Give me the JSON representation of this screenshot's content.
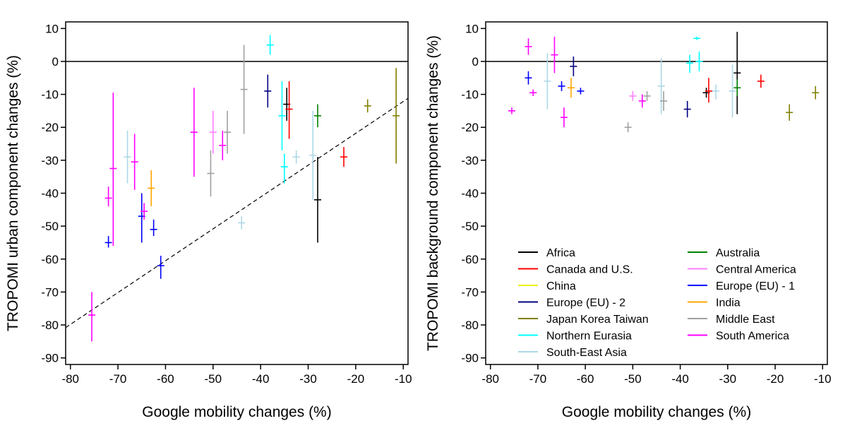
{
  "colors": {
    "Africa": "#000000",
    "Canada and U.S.": "#ff0000",
    "China": "#f0f000",
    "Europe (EU) - 2": "#000080",
    "Japan Korea Taiwan": "#808000",
    "Northern Eurasia": "#00ffff",
    "South-East Asia": "#add8e6",
    "Australia": "#008000",
    "Central America": "#ff80ff",
    "Europe (EU) - 1": "#0000ff",
    "India": "#ffa500",
    "Middle East": "#a0a0a0",
    "South America": "#ff00ff"
  },
  "chart_data": [
    {
      "type": "scatter",
      "title": "",
      "xlabel": "Google mobility changes (%)",
      "ylabel": "TROPOMI urban component changes (%)",
      "xlim": [
        -81,
        -9
      ],
      "ylim": [
        -92,
        12
      ],
      "xticks": [
        "-80",
        "-70",
        "-60",
        "-50",
        "-40",
        "-30",
        "-20",
        "-10"
      ],
      "yticks": [
        "10",
        "0",
        "-10",
        "-20",
        "-30",
        "-40",
        "-50",
        "-60",
        "-70",
        "-80",
        "-90"
      ],
      "error_bars": "vertical",
      "zero_line": true,
      "fit_line": {
        "style": "dashed",
        "x": [
          -81,
          -9
        ],
        "y": [
          -80.8,
          -11.2
        ]
      },
      "points": [
        {
          "series": "South America",
          "x": -75.5,
          "y": -77,
          "ylo": -85,
          "yhi": -70
        },
        {
          "series": "Europe (EU) - 1",
          "x": -72,
          "y": -55,
          "ylo": -56.5,
          "yhi": -53
        },
        {
          "series": "South America",
          "x": -72,
          "y": -41.5,
          "ylo": -44,
          "yhi": -38
        },
        {
          "series": "South America",
          "x": -71,
          "y": -32.5,
          "ylo": -56,
          "yhi": -9.5
        },
        {
          "series": "South-East Asia",
          "x": -68,
          "y": -29,
          "ylo": -37,
          "yhi": -21
        },
        {
          "series": "South America",
          "x": -66.5,
          "y": -30.5,
          "ylo": -39,
          "yhi": -22
        },
        {
          "series": "Europe (EU) - 1",
          "x": -65,
          "y": -47,
          "ylo": -55,
          "yhi": -40
        },
        {
          "series": "South America",
          "x": -64.5,
          "y": -45.5,
          "ylo": -48,
          "yhi": -43
        },
        {
          "series": "India",
          "x": -63,
          "y": -38.5,
          "ylo": -44,
          "yhi": -33
        },
        {
          "series": "Europe (EU) - 1",
          "x": -62.5,
          "y": -51,
          "ylo": -53,
          "yhi": -48
        },
        {
          "series": "Europe (EU) - 1",
          "x": -61,
          "y": -62,
          "ylo": -66,
          "yhi": -59
        },
        {
          "series": "South America",
          "x": -54,
          "y": -21.5,
          "ylo": -35,
          "yhi": -8
        },
        {
          "series": "Middle East",
          "x": -50.5,
          "y": -34,
          "ylo": -41,
          "yhi": -27
        },
        {
          "series": "Central America",
          "x": -50,
          "y": -21.5,
          "ylo": -28,
          "yhi": -15
        },
        {
          "series": "South America",
          "x": -48,
          "y": -25.5,
          "ylo": -30,
          "yhi": -21
        },
        {
          "series": "Middle East",
          "x": -47,
          "y": -21.5,
          "ylo": -28,
          "yhi": -15
        },
        {
          "series": "South-East Asia",
          "x": -44,
          "y": -49,
          "ylo": -51,
          "yhi": -47
        },
        {
          "series": "Middle East",
          "x": -43.5,
          "y": -8.5,
          "ylo": -22,
          "yhi": 5
        },
        {
          "series": "Europe (EU) - 2",
          "x": -38.5,
          "y": -9,
          "ylo": -14,
          "yhi": -4
        },
        {
          "series": "Northern Eurasia",
          "x": -38,
          "y": 5,
          "ylo": 2,
          "yhi": 8
        },
        {
          "series": "Northern Eurasia",
          "x": -35.5,
          "y": -16.5,
          "ylo": -27,
          "yhi": -6
        },
        {
          "series": "Northern Eurasia",
          "x": -35,
          "y": -32,
          "ylo": -37,
          "yhi": -28
        },
        {
          "series": "Africa",
          "x": -34.5,
          "y": -13,
          "ylo": -18,
          "yhi": -8
        },
        {
          "series": "Canada and U.S.",
          "x": -34,
          "y": -14.5,
          "ylo": -23.5,
          "yhi": -6
        },
        {
          "series": "South-East Asia",
          "x": -32.5,
          "y": -29,
          "ylo": -31,
          "yhi": -27
        },
        {
          "series": "South-East Asia",
          "x": -29,
          "y": -28.5,
          "ylo": -42,
          "yhi": -15
        },
        {
          "series": "Africa",
          "x": -28,
          "y": -42,
          "ylo": -55,
          "yhi": -29
        },
        {
          "series": "Australia",
          "x": -28,
          "y": -16.5,
          "ylo": -20,
          "yhi": -13
        },
        {
          "series": "Canada and U.S.",
          "x": -22.5,
          "y": -29,
          "ylo": -32,
          "yhi": -26
        },
        {
          "series": "Japan Korea Taiwan",
          "x": -17.5,
          "y": -13.5,
          "ylo": -15.5,
          "yhi": -11.5
        },
        {
          "series": "Japan Korea Taiwan",
          "x": -11.5,
          "y": -16.5,
          "ylo": -31,
          "yhi": -2
        }
      ]
    },
    {
      "type": "scatter",
      "title": "",
      "xlabel": "Google mobility changes (%)",
      "ylabel": "TROPOMI background component changes (%)",
      "xlim": [
        -81,
        -9
      ],
      "ylim": [
        -92,
        12
      ],
      "xticks": [
        "-80",
        "-70",
        "-60",
        "-50",
        "-40",
        "-30",
        "-20",
        "-10"
      ],
      "yticks": [
        "10",
        "0",
        "-10",
        "-20",
        "-30",
        "-40",
        "-50",
        "-60",
        "-70",
        "-80",
        "-90"
      ],
      "error_bars": "vertical",
      "zero_line": true,
      "legend": {
        "position": "bottom-right",
        "columns": 2,
        "entries": [
          "Africa",
          "Australia",
          "Canada and U.S.",
          "Central America",
          "China",
          "Europe (EU) - 1",
          "Europe (EU) - 2",
          "India",
          "Japan Korea Taiwan",
          "Middle East",
          "Northern Eurasia",
          "South America",
          "South-East Asia"
        ]
      },
      "points": [
        {
          "series": "South America",
          "x": -75.5,
          "y": -15,
          "ylo": -16,
          "yhi": -14
        },
        {
          "series": "South America",
          "x": -72,
          "y": 4.5,
          "ylo": 2,
          "yhi": 7
        },
        {
          "series": "Europe (EU) - 1",
          "x": -72,
          "y": -5,
          "ylo": -7,
          "yhi": -3
        },
        {
          "series": "South America",
          "x": -71,
          "y": -9.5,
          "ylo": -10.5,
          "yhi": -8.5
        },
        {
          "series": "South-East Asia",
          "x": -68,
          "y": -6,
          "ylo": -14.5,
          "yhi": 2.5
        },
        {
          "series": "South America",
          "x": -66.5,
          "y": 2,
          "ylo": -3.5,
          "yhi": 7.5
        },
        {
          "series": "South America",
          "x": -64.5,
          "y": -17,
          "ylo": -20,
          "yhi": -14
        },
        {
          "series": "Europe (EU) - 1",
          "x": -65,
          "y": -7.5,
          "ylo": -9,
          "yhi": -6
        },
        {
          "series": "India",
          "x": -63,
          "y": -8,
          "ylo": -11,
          "yhi": -5
        },
        {
          "series": "Europe (EU) - 2",
          "x": -62.5,
          "y": -1.5,
          "ylo": -4.5,
          "yhi": 1.5
        },
        {
          "series": "Europe (EU) - 1",
          "x": -61,
          "y": -9,
          "ylo": -10,
          "yhi": -8
        },
        {
          "series": "Middle East",
          "x": -51,
          "y": -20,
          "ylo": -21.5,
          "yhi": -18.5
        },
        {
          "series": "Central America",
          "x": -50,
          "y": -10.5,
          "ylo": -12,
          "yhi": -9
        },
        {
          "series": "South America",
          "x": -48,
          "y": -12,
          "ylo": -14,
          "yhi": -10
        },
        {
          "series": "Middle East",
          "x": -47,
          "y": -10.5,
          "ylo": -12,
          "yhi": -9
        },
        {
          "series": "South-East Asia",
          "x": -44,
          "y": -7.5,
          "ylo": -16,
          "yhi": 1
        },
        {
          "series": "Middle East",
          "x": -43.5,
          "y": -12,
          "ylo": -15,
          "yhi": -9
        },
        {
          "series": "Europe (EU) - 2",
          "x": -38.5,
          "y": -14.5,
          "ylo": -17,
          "yhi": -12
        },
        {
          "series": "Northern Eurasia",
          "x": -38,
          "y": -0.5,
          "ylo": -3.5,
          "yhi": 2
        },
        {
          "series": "Northern Eurasia",
          "x": -36.5,
          "y": 7,
          "ylo": 6.5,
          "yhi": 7.5
        },
        {
          "series": "Northern Eurasia",
          "x": -36,
          "y": 0,
          "ylo": -3,
          "yhi": 3
        },
        {
          "series": "Africa",
          "x": -34.5,
          "y": -9.5,
          "ylo": -11,
          "yhi": -8
        },
        {
          "series": "Canada and U.S.",
          "x": -34,
          "y": -9,
          "ylo": -12.5,
          "yhi": -5
        },
        {
          "series": "South-East Asia",
          "x": -32.5,
          "y": -9,
          "ylo": -11.5,
          "yhi": -7
        },
        {
          "series": "South-East Asia",
          "x": -29,
          "y": -9,
          "ylo": -17,
          "yhi": -1
        },
        {
          "series": "Africa",
          "x": -28,
          "y": -3.5,
          "ylo": -16,
          "yhi": 9
        },
        {
          "series": "Australia",
          "x": -28,
          "y": -8,
          "ylo": -10.5,
          "yhi": -5.5
        },
        {
          "series": "Canada and U.S.",
          "x": -23,
          "y": -6,
          "ylo": -8,
          "yhi": -4
        },
        {
          "series": "Japan Korea Taiwan",
          "x": -17,
          "y": -15.5,
          "ylo": -18,
          "yhi": -13
        },
        {
          "series": "Japan Korea Taiwan",
          "x": -11.5,
          "y": -9.5,
          "ylo": -11.5,
          "yhi": -7.5
        }
      ]
    }
  ]
}
